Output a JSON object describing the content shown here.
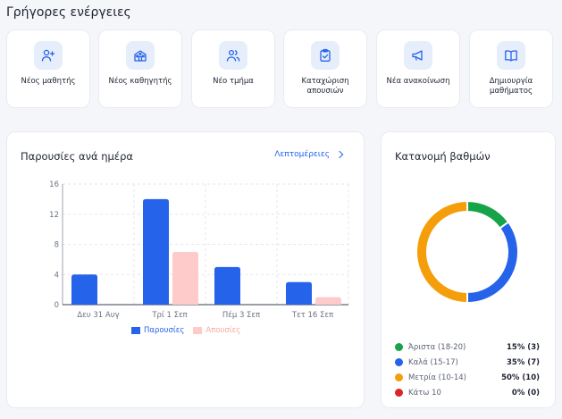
{
  "quick_actions": {
    "title": "Γρήγορες ενέργειες",
    "items": [
      {
        "label": "Νέος μαθητής",
        "icon": "user-plus-icon"
      },
      {
        "label": "Νέος καθηγητής",
        "icon": "school-icon"
      },
      {
        "label": "Νέο τμήμα",
        "icon": "users-icon"
      },
      {
        "label": "Καταχώριση απουσιών",
        "icon": "clipboard-check-icon"
      },
      {
        "label": "Νέα ανακοίνωση",
        "icon": "megaphone-icon"
      },
      {
        "label": "Δημιουργία μαθήματος",
        "icon": "book-icon"
      }
    ]
  },
  "attendance": {
    "title": "Παρουσίες ανά ημέρα",
    "details_label": "Λεπτομέρειες"
  },
  "grades": {
    "title": "Κατανομή βαθμών",
    "items": [
      {
        "label": "Άριστα (18-20)",
        "value": "15% (3)",
        "color": "#16a34a"
      },
      {
        "label": "Καλά (15-17)",
        "value": "35% (7)",
        "color": "#2563eb"
      },
      {
        "label": "Μετρία (10-14)",
        "value": "50% (10)",
        "color": "#f59e0b"
      },
      {
        "label": "Κάτω 10",
        "value": "0% (0)",
        "color": "#dc2626"
      }
    ]
  },
  "chart_data": [
    {
      "type": "bar",
      "categories": [
        "Δευ 31 Αυγ",
        "Τρί 1 Σεπ",
        "Πέμ 3 Σεπ",
        "Τετ 16 Σεπ"
      ],
      "series": [
        {
          "name": "Παρουσίες",
          "values": [
            4,
            14,
            5,
            3
          ],
          "color": "#2563eb"
        },
        {
          "name": "Απουσίες",
          "values": [
            0,
            7,
            0,
            1
          ],
          "color": "#fecaca"
        }
      ],
      "yticks": [
        0,
        4,
        8,
        12,
        16
      ],
      "ylim": [
        0,
        16
      ],
      "grid": true,
      "legend": "bottom"
    },
    {
      "type": "pie",
      "categories": [
        "Άριστα (18-20)",
        "Καλά (15-17)",
        "Μετρία (10-14)",
        "Κάτω 10"
      ],
      "values": [
        15,
        35,
        50,
        0
      ],
      "colors": [
        "#16a34a",
        "#2563eb",
        "#f59e0b",
        "#dc2626"
      ],
      "donut": true
    }
  ]
}
